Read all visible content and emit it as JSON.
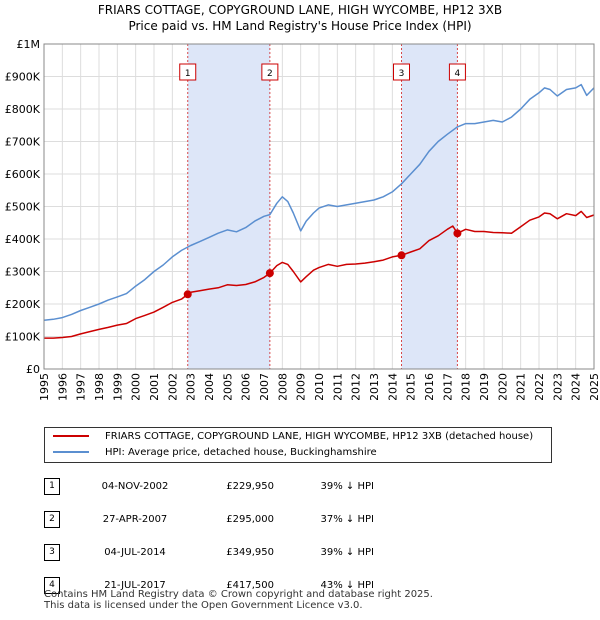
{
  "title_line1": "FRIARS COTTAGE, COPYGROUND LANE, HIGH WYCOMBE, HP12 3XB",
  "title_line2": "Price paid vs. HM Land Registry's House Price Index (HPI)",
  "legend": {
    "property_label": "FRIARS COTTAGE, COPYGROUND LANE, HIGH WYCOMBE, HP12 3XB (detached house)",
    "hpi_label": "HPI: Average price, detached house, Buckinghamshire"
  },
  "sales": [
    {
      "num": "1",
      "date": "04-NOV-2002",
      "price": "£229,950",
      "hpi_diff": "39% ↓ HPI"
    },
    {
      "num": "2",
      "date": "27-APR-2007",
      "price": "£295,000",
      "hpi_diff": "37% ↓ HPI"
    },
    {
      "num": "3",
      "date": "04-JUL-2014",
      "price": "£349,950",
      "hpi_diff": "39% ↓ HPI"
    },
    {
      "num": "4",
      "date": "21-JUL-2017",
      "price": "£417,500",
      "hpi_diff": "43% ↓ HPI"
    }
  ],
  "footer": {
    "line1": "Contains HM Land Registry data © Crown copyright and database right 2025.",
    "line2": "This data is licensed under the Open Government Licence v3.0."
  },
  "colors": {
    "property": "#cc0000",
    "hpi": "#5b8fd0",
    "shade": "#dde6f8",
    "grid": "#dddddd"
  },
  "chart_data": {
    "type": "line",
    "xlim": [
      1995,
      2025
    ],
    "ylim": [
      0,
      1000000
    ],
    "x_ticks": [
      "1995",
      "1996",
      "1997",
      "1998",
      "1999",
      "2000",
      "2001",
      "2002",
      "2003",
      "2004",
      "2005",
      "2006",
      "2007",
      "2008",
      "2009",
      "2010",
      "2011",
      "2012",
      "2013",
      "2014",
      "2015",
      "2016",
      "2017",
      "2018",
      "2019",
      "2020",
      "2021",
      "2022",
      "2023",
      "2024",
      "2025"
    ],
    "y_ticks": [
      {
        "value": 0,
        "label": "£0"
      },
      {
        "value": 100000,
        "label": "£100K"
      },
      {
        "value": 200000,
        "label": "£200K"
      },
      {
        "value": 300000,
        "label": "£300K"
      },
      {
        "value": 400000,
        "label": "£400K"
      },
      {
        "value": 500000,
        "label": "£500K"
      },
      {
        "value": 600000,
        "label": "£600K"
      },
      {
        "value": 700000,
        "label": "£700K"
      },
      {
        "value": 800000,
        "label": "£800K"
      },
      {
        "value": 900000,
        "label": "£900K"
      },
      {
        "value": 1000000,
        "label": "£1M"
      }
    ],
    "shaded_ranges": [
      [
        2002.84,
        2007.32
      ],
      [
        2014.5,
        2017.55
      ]
    ],
    "markers": [
      {
        "label": "1",
        "x": 2002.84,
        "y": 229950
      },
      {
        "label": "2",
        "x": 2007.32,
        "y": 295000
      },
      {
        "label": "3",
        "x": 2014.5,
        "y": 349950
      },
      {
        "label": "4",
        "x": 2017.55,
        "y": 417500
      }
    ],
    "series": [
      {
        "name": "FRIARS COTTAGE, COPYGROUND LANE, HIGH WYCOMBE, HP12 3XB (detached house)",
        "x": [
          1995.0,
          1995.5,
          1996.0,
          1996.5,
          1997.0,
          1997.5,
          1998.0,
          1998.5,
          1999.0,
          1999.5,
          2000.0,
          2000.5,
          2001.0,
          2001.5,
          2002.0,
          2002.5,
          2002.84,
          2003.0,
          2003.5,
          2004.0,
          2004.5,
          2005.0,
          2005.5,
          2006.0,
          2006.5,
          2007.0,
          2007.32,
          2007.7,
          2008.0,
          2008.3,
          2008.6,
          2009.0,
          2009.3,
          2009.7,
          2010.0,
          2010.5,
          2011.0,
          2011.5,
          2012.0,
          2012.5,
          2013.0,
          2013.5,
          2014.0,
          2014.5,
          2015.0,
          2015.5,
          2016.0,
          2016.5,
          2017.0,
          2017.3,
          2017.55,
          2018.0,
          2018.5,
          2019.0,
          2019.5,
          2020.0,
          2020.5,
          2021.0,
          2021.5,
          2022.0,
          2022.3,
          2022.6,
          2023.0,
          2023.5,
          2024.0,
          2024.3,
          2024.6,
          2025.0
        ],
        "y": [
          95000,
          95000,
          97000,
          100000,
          108000,
          115000,
          122000,
          128000,
          135000,
          140000,
          155000,
          165000,
          175000,
          190000,
          205000,
          215000,
          229950,
          236000,
          241000,
          246000,
          250000,
          259000,
          257000,
          260000,
          268000,
          282000,
          295000,
          318000,
          328000,
          322000,
          300000,
          268000,
          284000,
          304000,
          312000,
          322000,
          316000,
          322000,
          323000,
          326000,
          330000,
          335000,
          345000,
          349950,
          360000,
          370000,
          395000,
          410000,
          430000,
          440000,
          417500,
          430000,
          423000,
          423000,
          420000,
          419000,
          418000,
          438000,
          458000,
          468000,
          480000,
          478000,
          462000,
          478000,
          472000,
          485000,
          466000,
          474000
        ]
      },
      {
        "name": "HPI: Average price, detached house, Buckinghamshire",
        "x": [
          1995.0,
          1995.5,
          1996.0,
          1996.5,
          1997.0,
          1997.5,
          1998.0,
          1998.5,
          1999.0,
          1999.5,
          2000.0,
          2000.5,
          2001.0,
          2001.5,
          2002.0,
          2002.5,
          2003.0,
          2003.5,
          2004.0,
          2004.5,
          2005.0,
          2005.5,
          2006.0,
          2006.5,
          2007.0,
          2007.32,
          2007.7,
          2008.0,
          2008.3,
          2008.6,
          2009.0,
          2009.3,
          2009.7,
          2010.0,
          2010.5,
          2011.0,
          2011.5,
          2012.0,
          2012.5,
          2013.0,
          2013.5,
          2014.0,
          2014.5,
          2015.0,
          2015.5,
          2016.0,
          2016.5,
          2017.0,
          2017.55,
          2018.0,
          2018.5,
          2019.0,
          2019.5,
          2020.0,
          2020.5,
          2021.0,
          2021.5,
          2022.0,
          2022.3,
          2022.6,
          2023.0,
          2023.5,
          2024.0,
          2024.3,
          2024.6,
          2025.0
        ],
        "y": [
          150000,
          153000,
          158000,
          168000,
          180000,
          190000,
          200000,
          212000,
          222000,
          232000,
          255000,
          275000,
          300000,
          320000,
          345000,
          365000,
          380000,
          392000,
          405000,
          418000,
          428000,
          422000,
          435000,
          455000,
          470000,
          475000,
          510000,
          530000,
          515000,
          480000,
          425000,
          455000,
          480000,
          495000,
          505000,
          500000,
          505000,
          510000,
          515000,
          520000,
          530000,
          545000,
          570000,
          600000,
          630000,
          670000,
          700000,
          722000,
          745000,
          755000,
          755000,
          760000,
          765000,
          760000,
          775000,
          800000,
          830000,
          850000,
          865000,
          860000,
          840000,
          860000,
          865000,
          875000,
          842000,
          865000
        ]
      }
    ]
  }
}
